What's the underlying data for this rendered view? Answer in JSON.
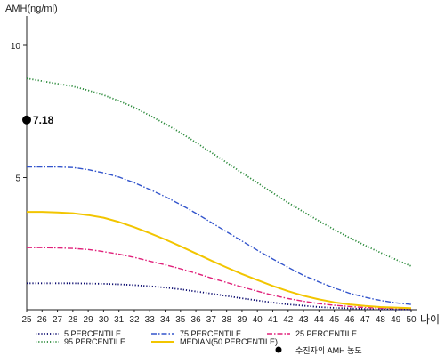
{
  "chart_data": {
    "type": "line",
    "ylabel": "AMH(ng/ml)",
    "xlabel": "나이",
    "x": [
      25,
      26,
      27,
      28,
      29,
      30,
      31,
      32,
      33,
      34,
      35,
      36,
      37,
      38,
      39,
      40,
      41,
      42,
      43,
      44,
      45,
      46,
      47,
      48,
      49,
      50
    ],
    "x_ticks": [
      "25",
      "26",
      "27",
      "28",
      "29",
      "30",
      "31",
      "32",
      "33",
      "34",
      "35",
      "36",
      "37",
      "38",
      "39",
      "40",
      "41",
      "42",
      "43",
      "44",
      "45",
      "46",
      "47",
      "48",
      "49",
      "50"
    ],
    "y_ticks": [
      "5",
      "10"
    ],
    "ylim": [
      0,
      11
    ],
    "grid": false,
    "legend_position": "bottom",
    "series": [
      {
        "name": "5 PERCENTILE",
        "color": "#0a0a6e",
        "dash": "dotted",
        "values": [
          1.0,
          1.0,
          1.0,
          1.0,
          0.99,
          0.98,
          0.96,
          0.93,
          0.89,
          0.84,
          0.77,
          0.69,
          0.61,
          0.52,
          0.43,
          0.35,
          0.27,
          0.2,
          0.15,
          0.1,
          0.07,
          0.05,
          0.03,
          0.02,
          0.01,
          0.01
        ]
      },
      {
        "name": "75 PERCENTILE",
        "color": "#3355cc",
        "dash": "dashdot",
        "values": [
          5.4,
          5.4,
          5.4,
          5.38,
          5.3,
          5.18,
          5.02,
          4.8,
          4.55,
          4.28,
          3.98,
          3.65,
          3.3,
          2.95,
          2.6,
          2.25,
          1.92,
          1.6,
          1.3,
          1.05,
          0.82,
          0.62,
          0.47,
          0.35,
          0.26,
          0.2
        ]
      },
      {
        "name": "25 PERCENTILE",
        "color": "#e0207a",
        "dash": "dashdot",
        "values": [
          2.35,
          2.35,
          2.34,
          2.32,
          2.28,
          2.2,
          2.1,
          1.98,
          1.84,
          1.7,
          1.55,
          1.38,
          1.2,
          1.03,
          0.86,
          0.7,
          0.55,
          0.42,
          0.32,
          0.23,
          0.17,
          0.12,
          0.08,
          0.06,
          0.05,
          0.04
        ]
      },
      {
        "name": "95 PERCENTILE",
        "color": "#2a8a3a",
        "dash": "dotted",
        "values": [
          8.75,
          8.65,
          8.55,
          8.45,
          8.3,
          8.12,
          7.9,
          7.65,
          7.35,
          7.03,
          6.7,
          6.33,
          5.95,
          5.57,
          5.18,
          4.8,
          4.42,
          4.05,
          3.7,
          3.36,
          3.03,
          2.72,
          2.43,
          2.16,
          1.9,
          1.65
        ]
      },
      {
        "name": "MEDIAN(50 PERCENTILE)",
        "color": "#f2c500",
        "dash": "solid",
        "values": [
          3.7,
          3.7,
          3.68,
          3.65,
          3.58,
          3.48,
          3.32,
          3.12,
          2.9,
          2.66,
          2.4,
          2.13,
          1.86,
          1.6,
          1.35,
          1.12,
          0.9,
          0.7,
          0.53,
          0.39,
          0.28,
          0.2,
          0.14,
          0.1,
          0.08,
          0.06
        ]
      }
    ],
    "patient": {
      "name": "수진자의 AMH 농도",
      "age": 25,
      "value": 7.18,
      "label": "7.18",
      "color": "#000000"
    }
  }
}
